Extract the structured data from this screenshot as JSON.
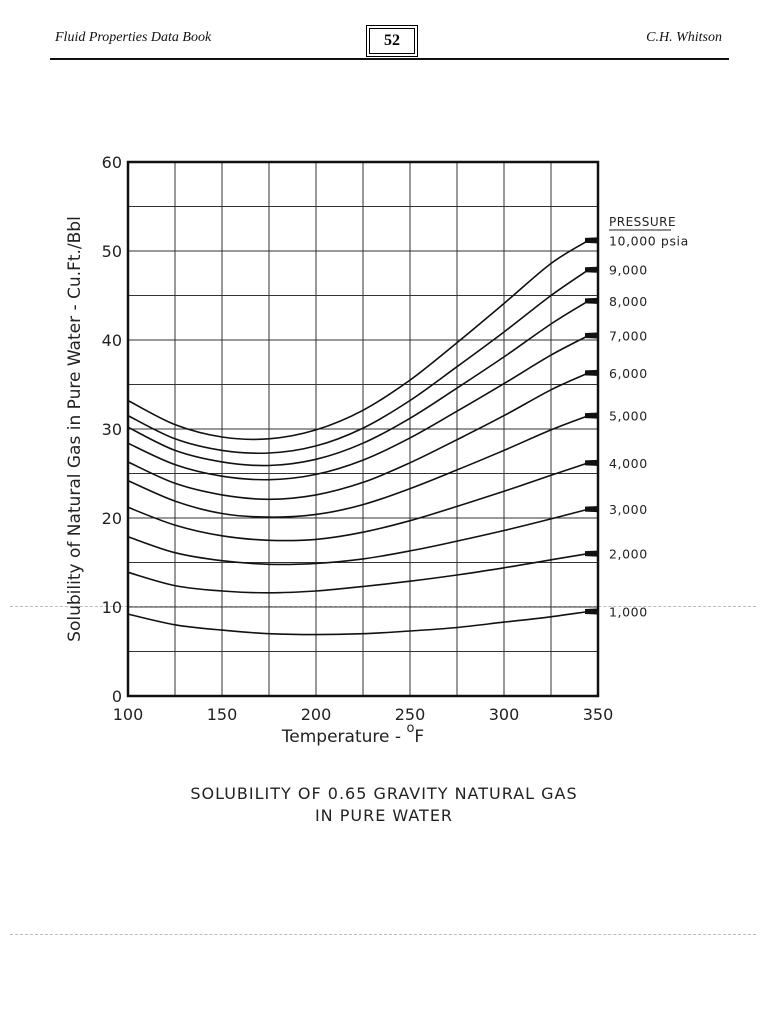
{
  "header": {
    "left": "Fluid Properties Data Book",
    "page_number": "52",
    "right": "C.H. Whitson"
  },
  "caption": {
    "line1": "SOLUBILITY OF 0.65 GRAVITY NATURAL GAS",
    "line2": "IN PURE WATER"
  },
  "chart_data": {
    "type": "line",
    "title": "",
    "xlabel": "Temperature - °F",
    "ylabel": "Solubility of Natural Gas in Pure Water - Cu.Ft./Bbl",
    "xlim": [
      100,
      350
    ],
    "ylim": [
      0,
      60
    ],
    "x_ticks": [
      100,
      150,
      200,
      250,
      300,
      350
    ],
    "y_ticks": [
      0,
      10,
      20,
      30,
      40,
      50,
      60
    ],
    "grid": true,
    "legend_title": "PRESSURE",
    "legend_position": "right",
    "series": [
      {
        "name": "1,000",
        "x": [
          100,
          125,
          150,
          175,
          200,
          225,
          250,
          275,
          300,
          325,
          345
        ],
        "y": [
          9.2,
          8.0,
          7.4,
          7.0,
          6.9,
          7.0,
          7.3,
          7.7,
          8.3,
          8.9,
          9.5
        ]
      },
      {
        "name": "2,000",
        "x": [
          100,
          125,
          150,
          175,
          200,
          225,
          250,
          275,
          300,
          325,
          345
        ],
        "y": [
          13.9,
          12.4,
          11.8,
          11.6,
          11.8,
          12.3,
          12.9,
          13.6,
          14.4,
          15.3,
          16.0
        ]
      },
      {
        "name": "3,000",
        "x": [
          100,
          125,
          150,
          175,
          200,
          225,
          250,
          275,
          300,
          325,
          345
        ],
        "y": [
          17.9,
          16.1,
          15.2,
          14.8,
          14.9,
          15.4,
          16.3,
          17.4,
          18.6,
          19.9,
          21.0
        ]
      },
      {
        "name": "4,000",
        "x": [
          100,
          125,
          150,
          175,
          200,
          225,
          250,
          275,
          300,
          325,
          345
        ],
        "y": [
          21.2,
          19.2,
          18.0,
          17.5,
          17.6,
          18.4,
          19.7,
          21.3,
          23.0,
          24.8,
          26.2
        ]
      },
      {
        "name": "5,000",
        "x": [
          100,
          125,
          150,
          175,
          200,
          225,
          250,
          275,
          300,
          325,
          345
        ],
        "y": [
          24.2,
          21.9,
          20.5,
          20.1,
          20.4,
          21.5,
          23.3,
          25.4,
          27.6,
          29.9,
          31.5
        ]
      },
      {
        "name": "6,000",
        "x": [
          100,
          125,
          150,
          175,
          200,
          225,
          250,
          275,
          300,
          325,
          345
        ],
        "y": [
          26.3,
          23.9,
          22.6,
          22.1,
          22.6,
          24.0,
          26.2,
          28.8,
          31.5,
          34.4,
          36.3
        ]
      },
      {
        "name": "7,000",
        "x": [
          100,
          125,
          150,
          175,
          200,
          225,
          250,
          275,
          300,
          325,
          345
        ],
        "y": [
          28.4,
          26.0,
          24.7,
          24.3,
          24.9,
          26.5,
          29.0,
          32.0,
          35.1,
          38.3,
          40.5
        ]
      },
      {
        "name": "8,000",
        "x": [
          100,
          125,
          150,
          175,
          200,
          225,
          250,
          275,
          300,
          325,
          345
        ],
        "y": [
          30.2,
          27.6,
          26.3,
          25.9,
          26.6,
          28.4,
          31.2,
          34.6,
          38.1,
          41.8,
          44.4
        ]
      },
      {
        "name": "9,000",
        "x": [
          100,
          125,
          150,
          175,
          200,
          225,
          250,
          275,
          300,
          325,
          345
        ],
        "y": [
          31.5,
          28.9,
          27.6,
          27.3,
          28.1,
          30.1,
          33.2,
          37.0,
          40.9,
          45.0,
          47.9
        ]
      },
      {
        "name": "10,000 psia",
        "x": [
          100,
          125,
          150,
          175,
          200,
          225,
          250,
          275,
          300,
          325,
          345
        ],
        "y": [
          33.2,
          30.5,
          29.1,
          28.9,
          29.9,
          32.1,
          35.5,
          39.7,
          44.1,
          48.6,
          51.2
        ]
      }
    ]
  }
}
